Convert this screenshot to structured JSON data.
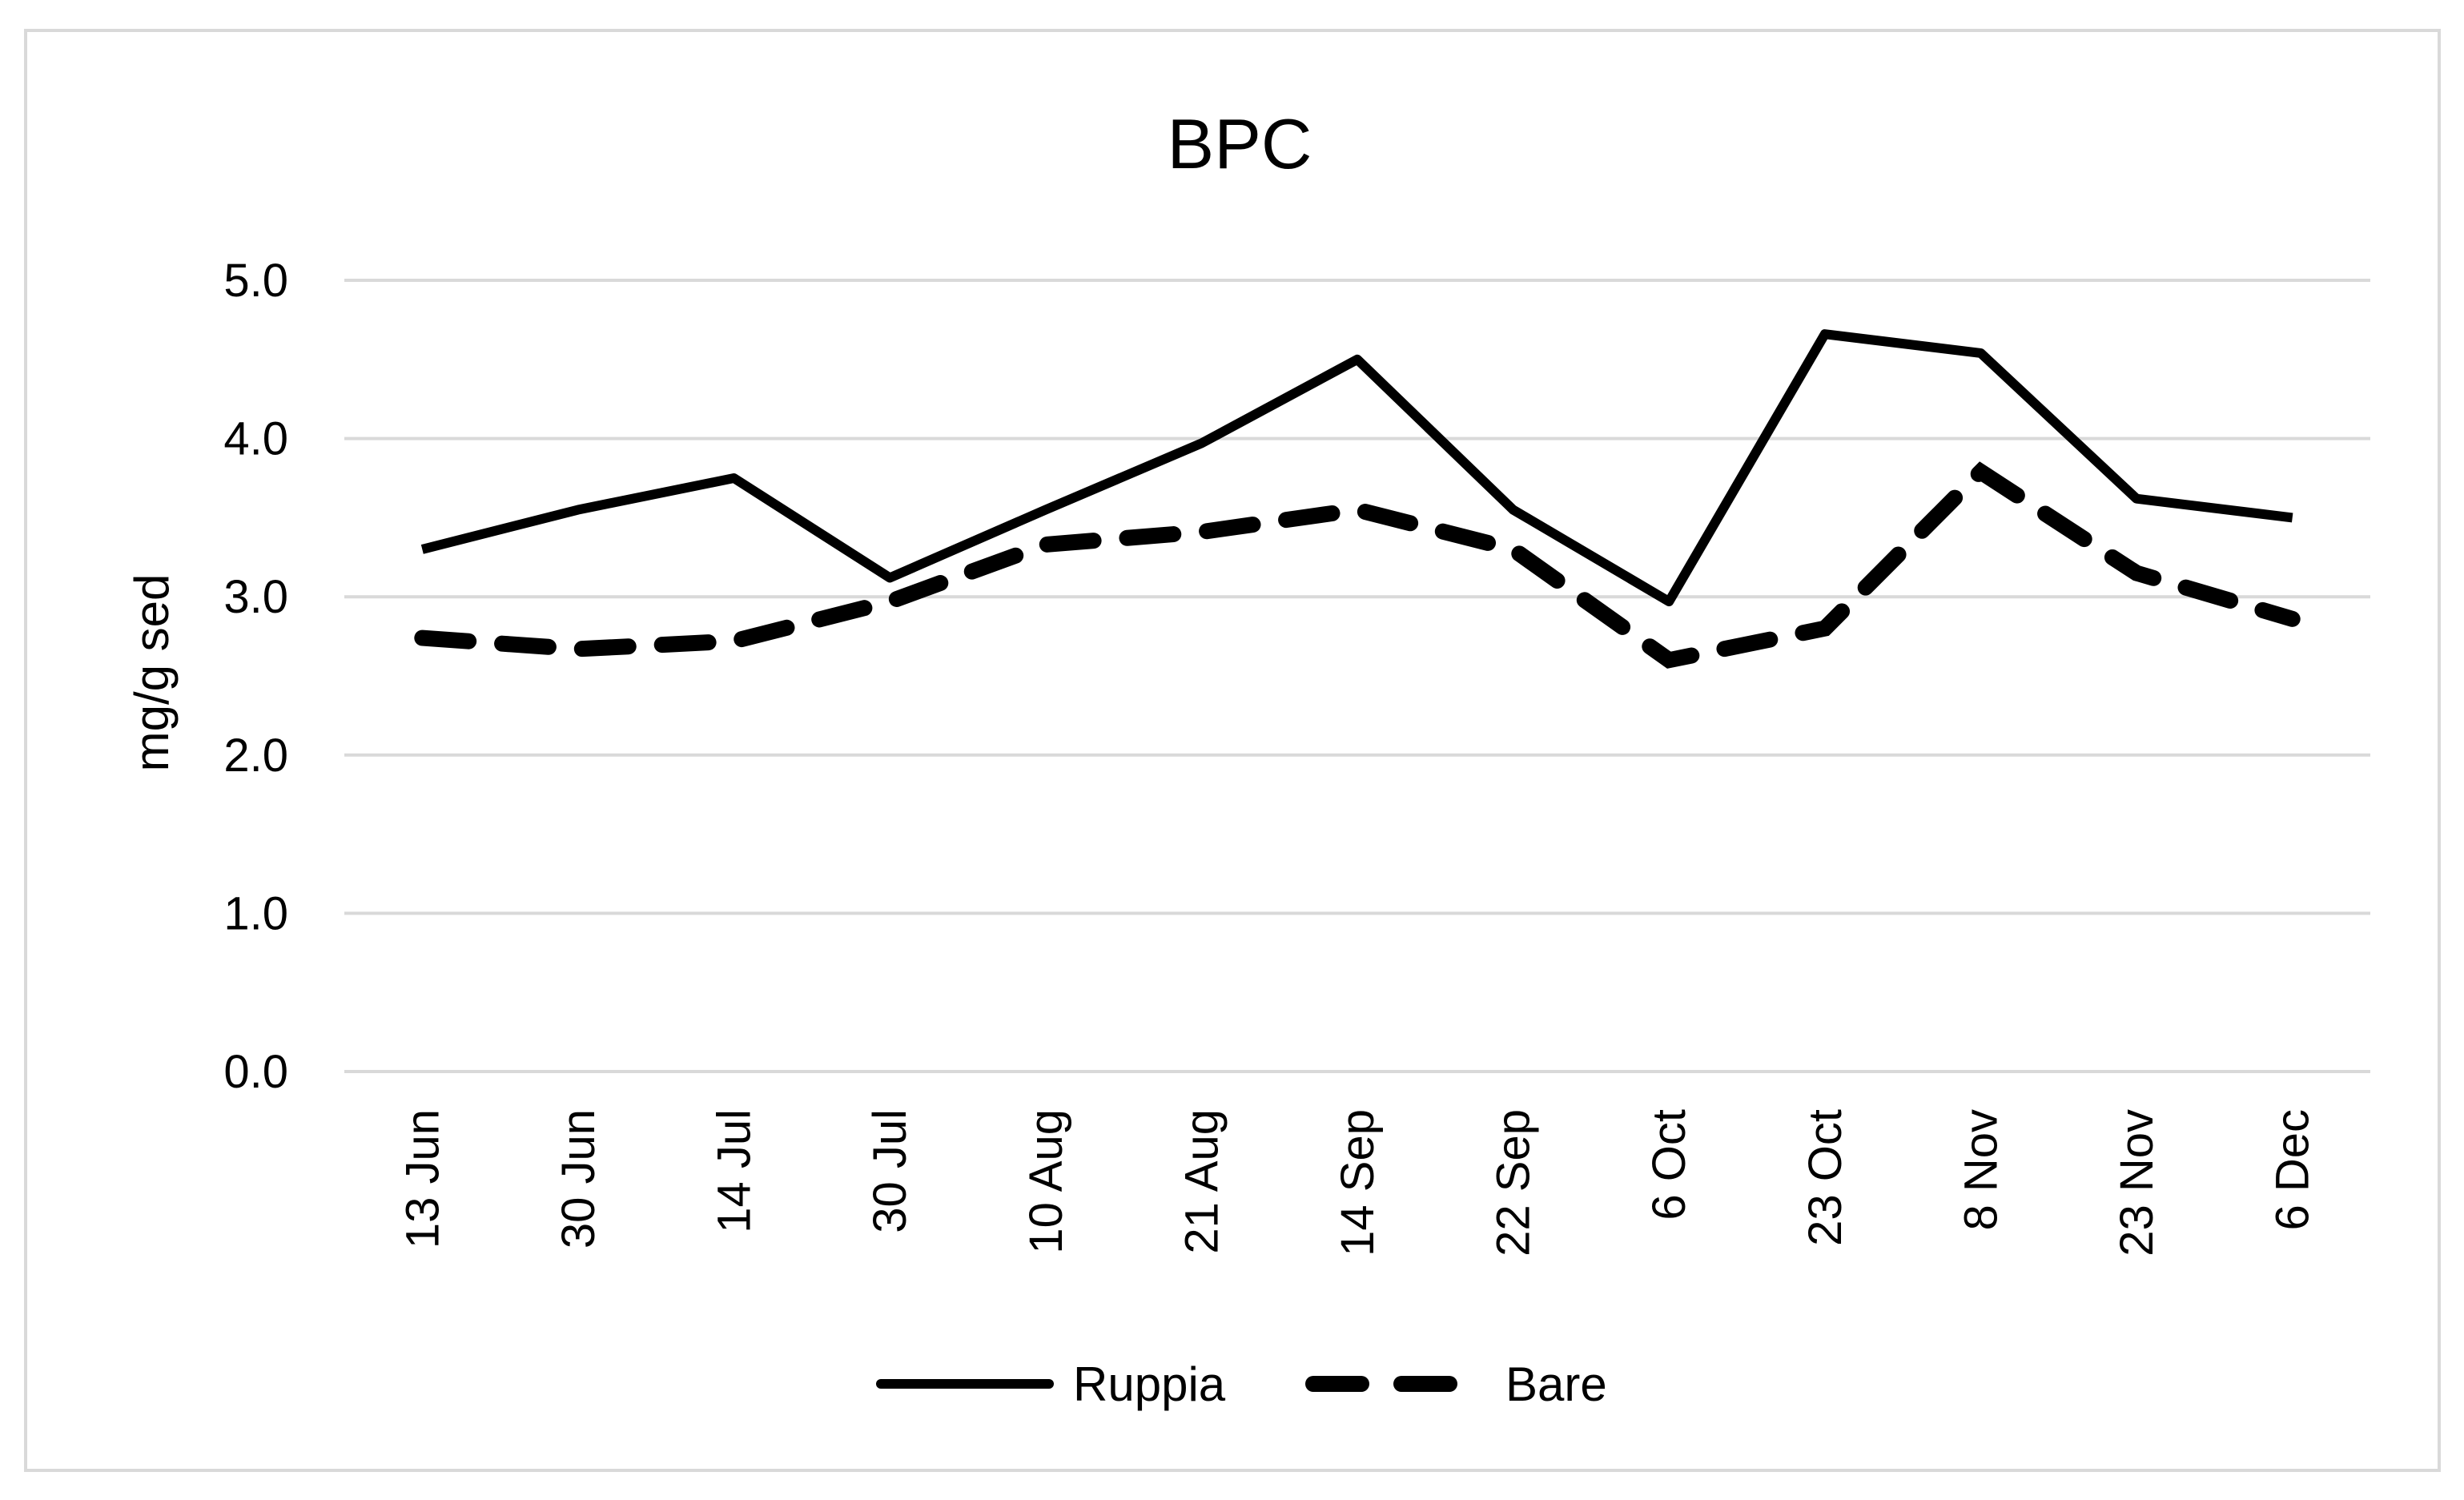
{
  "chart_data": {
    "type": "line",
    "title": "BPC",
    "ylabel": "mg/g sed",
    "xlabel": "",
    "categories": [
      "13 Jun",
      "30 Jun",
      "14 Jul",
      "30 Jul",
      "10 Aug",
      "21 Aug",
      "14 Sep",
      "22 Sep",
      "6 Oct",
      "23 Oct",
      "8 Nov",
      "23 Nov",
      "6 Dec"
    ],
    "ylim": [
      0,
      5
    ],
    "yticks": [
      "0.0",
      "1.0",
      "2.0",
      "3.0",
      "4.0",
      "5.0"
    ],
    "grid": true,
    "legend_position": "bottom",
    "series": [
      {
        "name": "Ruppia",
        "style": "solid",
        "color": "#000000",
        "values": [
          3.3,
          3.55,
          3.75,
          3.12,
          3.55,
          3.97,
          4.5,
          3.55,
          2.97,
          4.66,
          4.54,
          3.62,
          3.5
        ]
      },
      {
        "name": "Bare",
        "style": "dashed",
        "color": "#000000",
        "values": [
          2.74,
          2.67,
          2.72,
          2.97,
          3.33,
          3.41,
          3.55,
          3.3,
          2.6,
          2.8,
          3.79,
          3.15,
          2.86
        ]
      }
    ]
  }
}
